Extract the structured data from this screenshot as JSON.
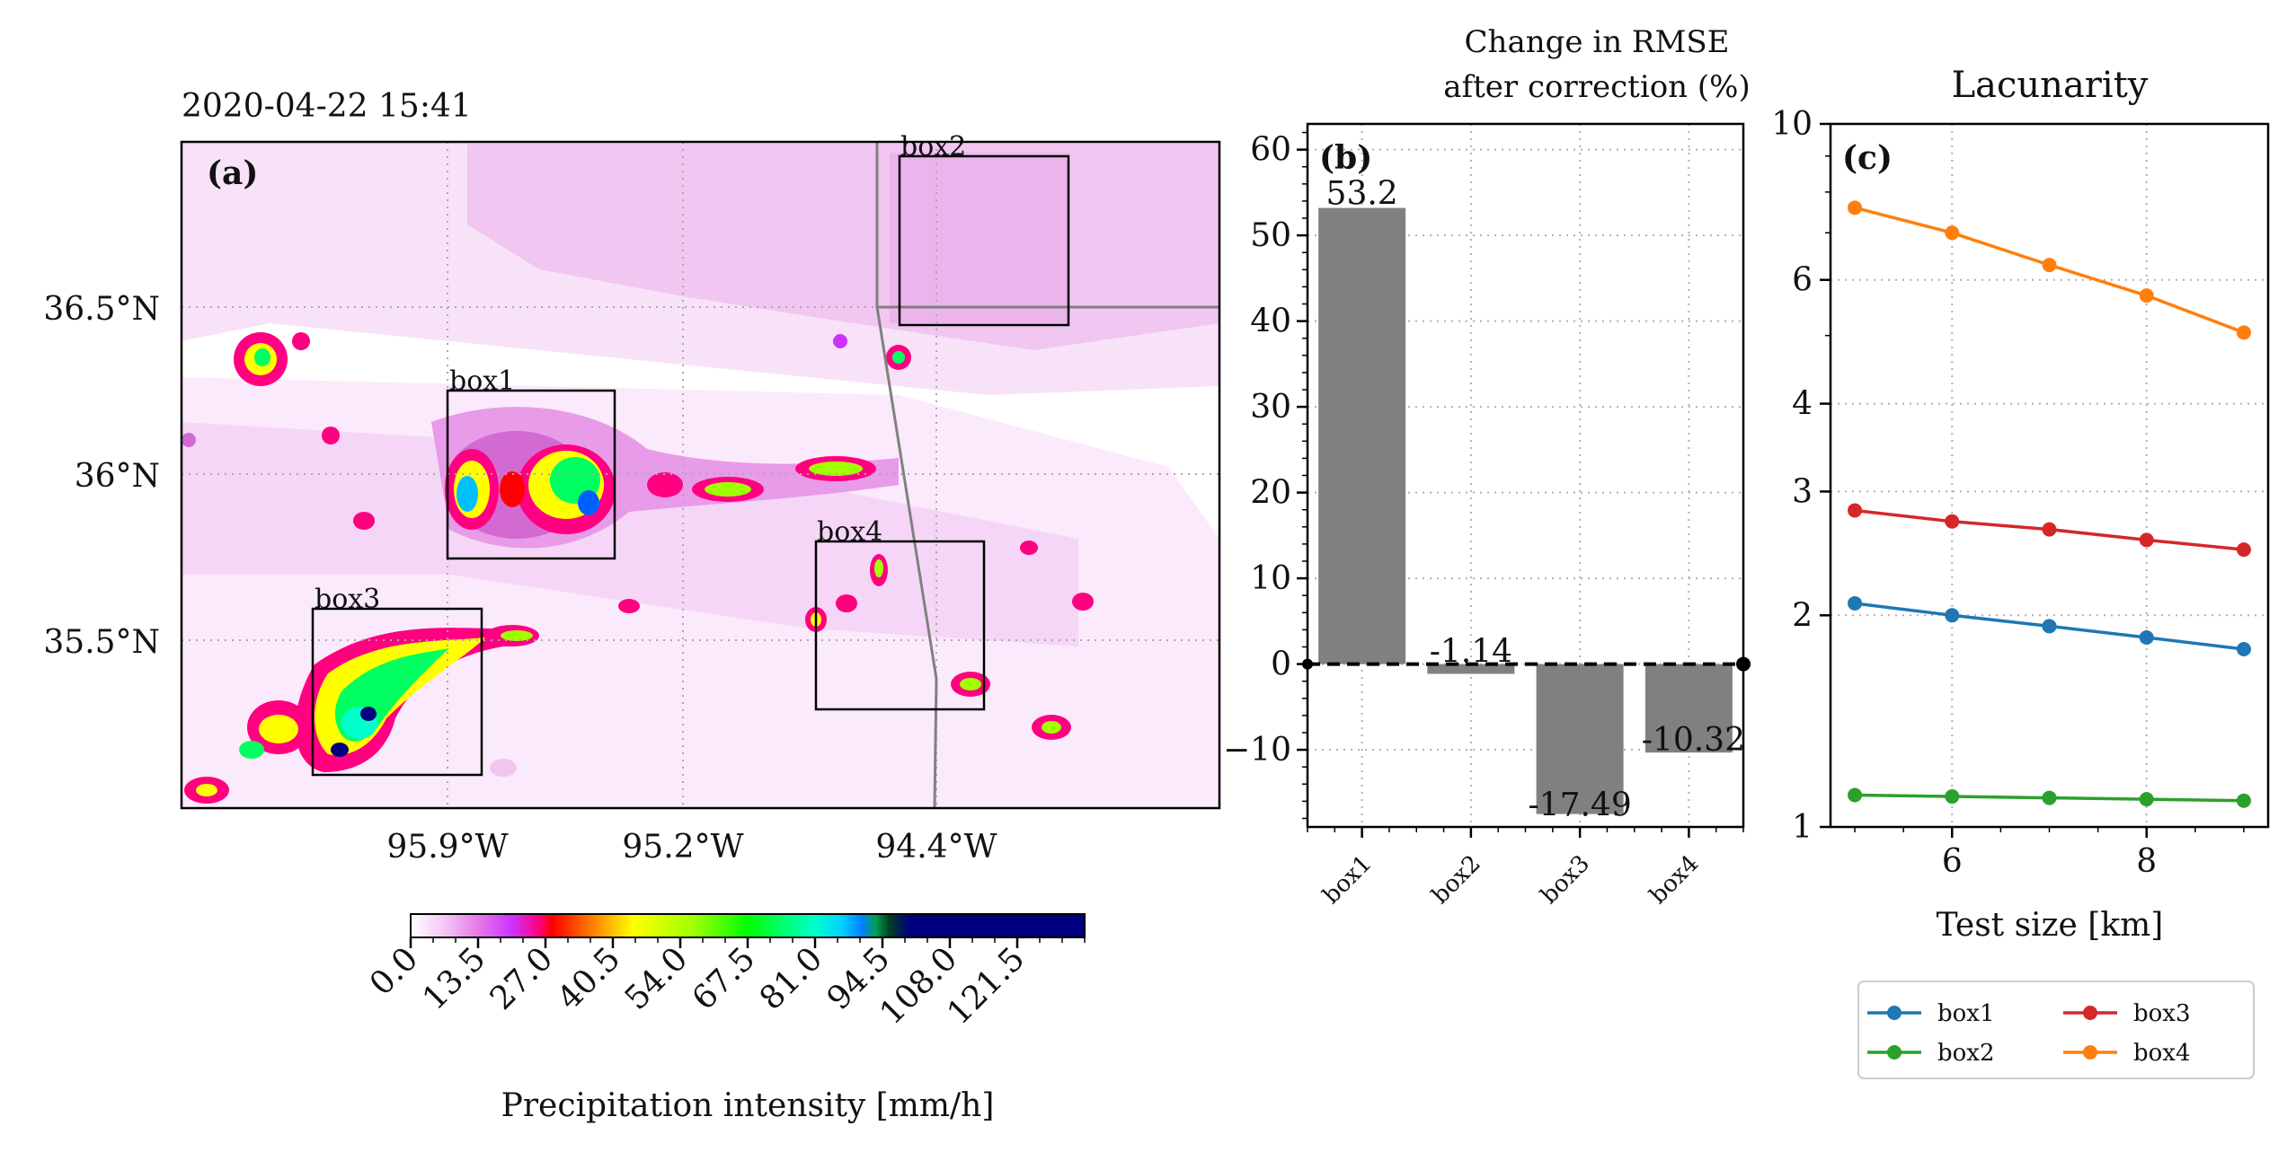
{
  "panel_a": {
    "timestamp": "2020-04-22 15:41",
    "panel_label": "(a)",
    "lat_ticks": [
      "36.5°N",
      "36°N",
      "35.5°N"
    ],
    "lon_ticks": [
      "95.9°W",
      "95.2°W",
      "94.4°W"
    ],
    "boxes": [
      "box1",
      "box2",
      "box3",
      "box4"
    ],
    "colorbar": {
      "label": "Precipitation intensity [mm/h]",
      "ticks": [
        "0.0",
        "13.5",
        "27.0",
        "40.5",
        "54.0",
        "67.5",
        "81.0",
        "94.5",
        "108.0",
        "121.5"
      ],
      "range": [
        0,
        135
      ]
    }
  },
  "panel_b": {
    "panel_label": "(b)",
    "title_line1": "Change in RMSE",
    "title_line2": "after correction (%)",
    "bar_color": "#808080"
  },
  "panel_c": {
    "panel_label": "(c)",
    "title": "Lacunarity",
    "xlabel": "Test size [km]",
    "legend_entries": [
      "box1",
      "box2",
      "box3",
      "box4"
    ]
  },
  "chart_data": [
    {
      "type": "bar",
      "title": "Change in RMSE after correction (%)",
      "categories": [
        "box1",
        "box2",
        "box3",
        "box4"
      ],
      "values": [
        53.2,
        -1.14,
        -17.49,
        -10.32
      ],
      "value_labels": [
        "53.2",
        "-1.14",
        "-17.49",
        "-10.32"
      ],
      "ylim": [
        -19,
        63
      ],
      "yticks": [
        "60",
        "50",
        "40",
        "30",
        "20",
        "10",
        "0",
        "−10"
      ],
      "ytick_values": [
        60,
        50,
        40,
        30,
        20,
        10,
        0,
        -10
      ],
      "reference_line": 0
    },
    {
      "type": "line",
      "title": "Lacunarity",
      "xlabel": "Test size [km]",
      "ylabel": "",
      "yscale": "log",
      "x": [
        5,
        6,
        7,
        8,
        9
      ],
      "xlim": [
        4.75,
        9.25
      ],
      "ylim": [
        1,
        10
      ],
      "xticks": [
        "6",
        "8"
      ],
      "xtick_values": [
        6,
        8
      ],
      "yticks": [
        "10",
        "6",
        "4",
        "3",
        "2",
        "1"
      ],
      "ytick_values": [
        10,
        6,
        4,
        3,
        2,
        1
      ],
      "series": [
        {
          "name": "box1",
          "color": "#1f77b4",
          "values": [
            2.08,
            2.0,
            1.93,
            1.86,
            1.79
          ]
        },
        {
          "name": "box2",
          "color": "#2ca02c",
          "values": [
            1.11,
            1.105,
            1.1,
            1.095,
            1.09
          ]
        },
        {
          "name": "box3",
          "color": "#d62728",
          "values": [
            2.82,
            2.72,
            2.65,
            2.56,
            2.48
          ]
        },
        {
          "name": "box4",
          "color": "#ff7f0e",
          "values": [
            7.6,
            7.0,
            6.3,
            5.7,
            5.05
          ]
        }
      ]
    }
  ]
}
